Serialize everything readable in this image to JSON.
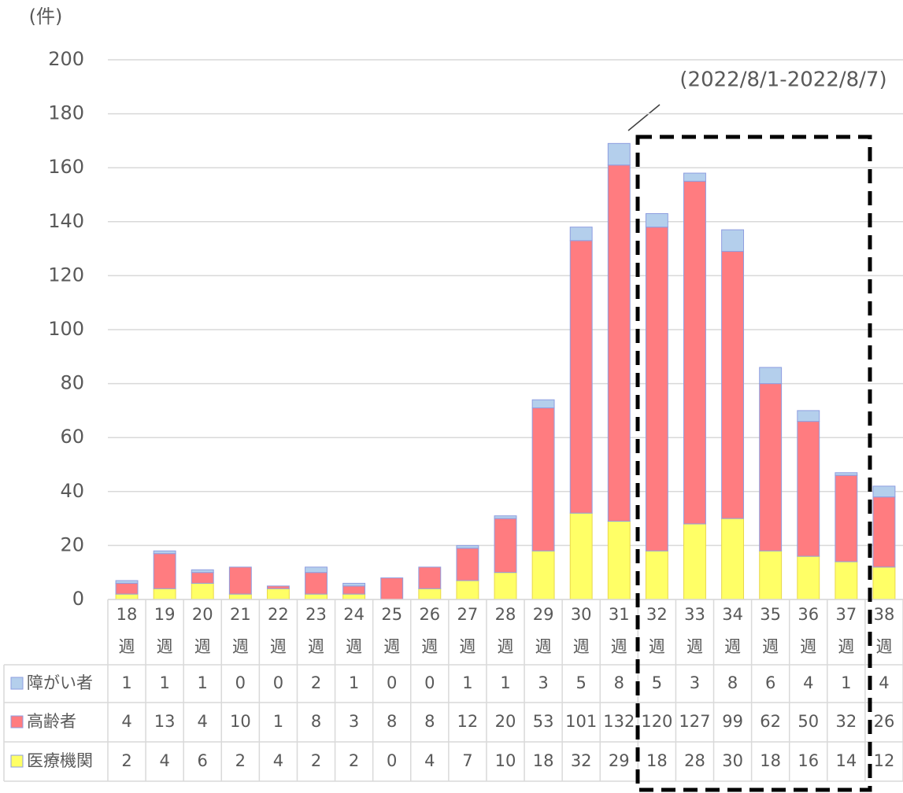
{
  "chart_data": {
    "type": "stacked_bar",
    "y_axis_label": "(件)",
    "annotation": "(2022/8/1-2022/8/7)",
    "categories": [
      "18週",
      "19週",
      "20週",
      "21週",
      "22週",
      "23週",
      "24週",
      "25週",
      "26週",
      "27週",
      "28週",
      "29週",
      "30週",
      "31週",
      "32週",
      "33週",
      "34週",
      "35週",
      "36週",
      "37週",
      "38週"
    ],
    "series": [
      {
        "name": "障がい者",
        "color": "#b4cfec",
        "values": [
          1,
          1,
          1,
          0,
          0,
          2,
          1,
          0,
          0,
          1,
          1,
          3,
          5,
          8,
          5,
          3,
          8,
          6,
          4,
          1,
          4
        ]
      },
      {
        "name": "高齢者",
        "color": "#ff7c80",
        "values": [
          4,
          13,
          4,
          10,
          1,
          8,
          3,
          8,
          8,
          12,
          20,
          53,
          101,
          132,
          120,
          127,
          99,
          62,
          50,
          32,
          26
        ]
      },
      {
        "name": "医療機関",
        "color": "#ffff66",
        "values": [
          2,
          4,
          6,
          2,
          4,
          2,
          2,
          0,
          4,
          7,
          10,
          18,
          32,
          29,
          18,
          28,
          30,
          18,
          16,
          14,
          12
        ]
      }
    ],
    "ylim": [
      0,
      200
    ],
    "yticks": [
      0,
      20,
      40,
      60,
      80,
      100,
      120,
      140,
      160,
      180,
      200
    ],
    "grid": true
  }
}
